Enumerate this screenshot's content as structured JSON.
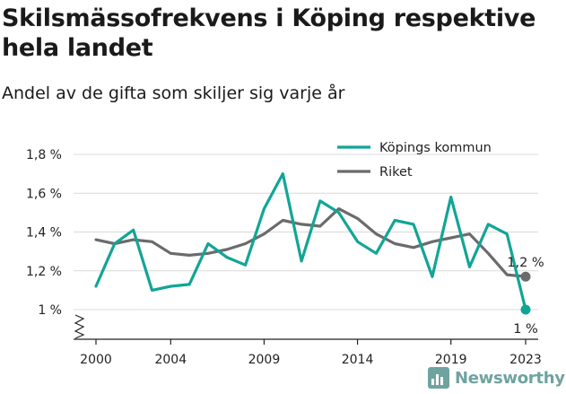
{
  "title": "Skilsmässofrekvens i Köping respektive hela landet",
  "subtitle": "Andel av de gifta som skiljer sig varje år",
  "brand": "Newsworthy",
  "colors": {
    "kommun": "#12a595",
    "riket": "#6b6b6d",
    "grid": "#d9d9d9",
    "brand": "#6fa3a0"
  },
  "chart_data": {
    "type": "line",
    "x": [
      2000,
      2001,
      2002,
      2003,
      2004,
      2005,
      2006,
      2007,
      2008,
      2009,
      2010,
      2011,
      2012,
      2013,
      2014,
      2015,
      2016,
      2017,
      2018,
      2019,
      2020,
      2021,
      2022,
      2023
    ],
    "x_ticks": [
      2000,
      2004,
      2009,
      2014,
      2019,
      2023
    ],
    "y_ticks": [
      1.0,
      1.2,
      1.4,
      1.6,
      1.8
    ],
    "y_tick_labels": [
      "1 %",
      "1,2 %",
      "1,4 %",
      "1,6 %",
      "1,8 %"
    ],
    "ylim": [
      1.0,
      1.8
    ],
    "axis_break": true,
    "legend_position": "top-right",
    "series": [
      {
        "name": "Köpings kommun",
        "key": "kommun",
        "values": [
          1.12,
          1.34,
          1.41,
          1.1,
          1.12,
          1.13,
          1.34,
          1.27,
          1.23,
          1.52,
          1.7,
          1.25,
          1.56,
          1.5,
          1.35,
          1.29,
          1.46,
          1.44,
          1.17,
          1.58,
          1.22,
          1.44,
          1.39,
          1.0
        ],
        "end_label": "1 %"
      },
      {
        "name": "Riket",
        "key": "riket",
        "values": [
          1.36,
          1.34,
          1.36,
          1.35,
          1.29,
          1.28,
          1.29,
          1.31,
          1.34,
          1.39,
          1.46,
          1.44,
          1.43,
          1.52,
          1.47,
          1.39,
          1.34,
          1.32,
          1.35,
          1.37,
          1.39,
          1.29,
          1.18,
          1.17
        ],
        "end_label": "1,2 %"
      }
    ]
  }
}
